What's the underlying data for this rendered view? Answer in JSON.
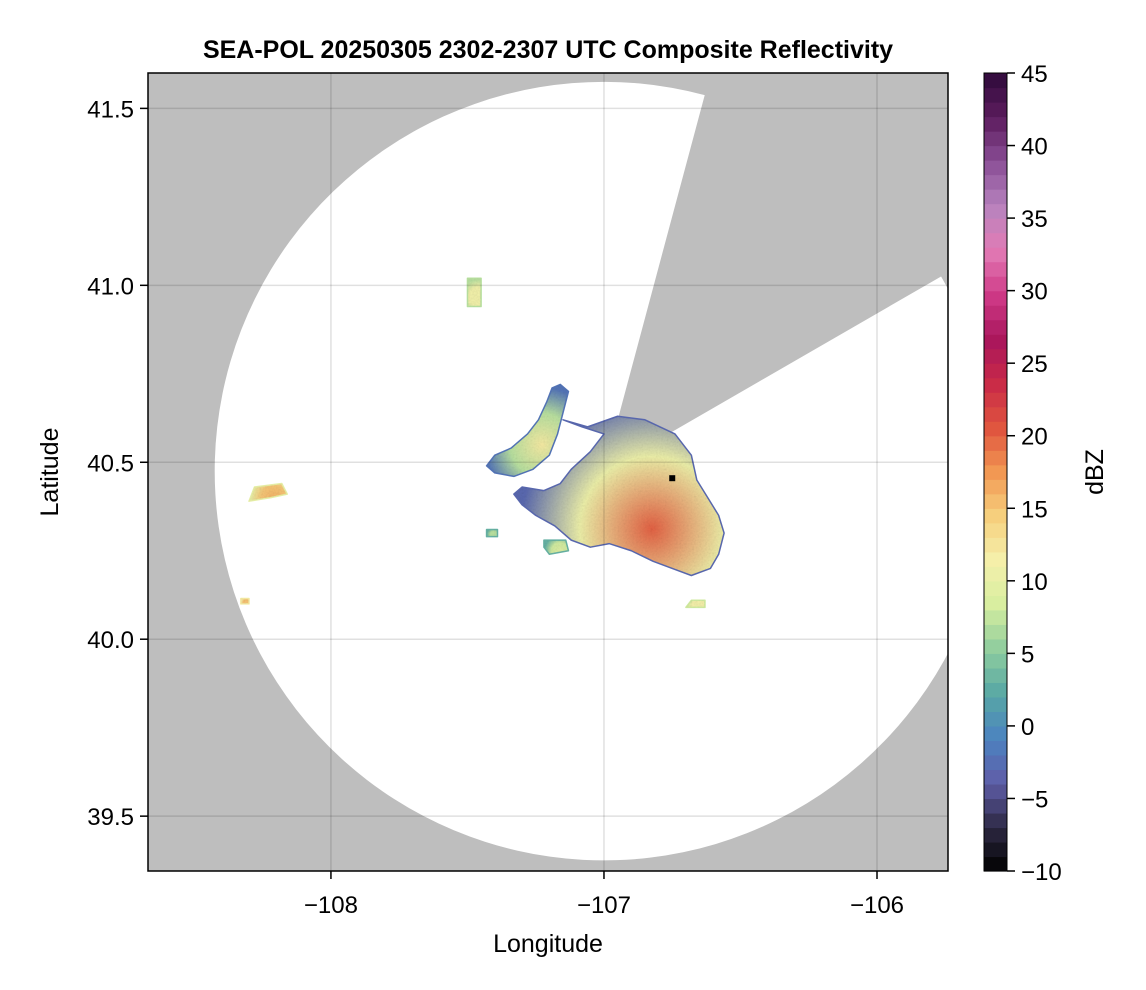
{
  "chart_data": {
    "type": "heatmap",
    "title": "SEA-POL 20250305 2302-2307 UTC Composite Reflectivity",
    "xlabel": "Longitude",
    "ylabel": "Latitude",
    "xlim": [
      -108.67,
      -105.74
    ],
    "ylim": [
      39.345,
      41.6
    ],
    "xticks": [
      -108,
      -107,
      -106
    ],
    "xtick_labels": [
      "−108",
      "−107",
      "−106"
    ],
    "yticks": [
      39.5,
      40.0,
      40.5,
      41.0,
      41.5
    ],
    "ytick_labels": [
      "39.5",
      "40.0",
      "40.5",
      "41.0",
      "41.5"
    ],
    "grid": true,
    "background_color": "#bebebe",
    "coverage_color": "#ffffff",
    "radar": {
      "center_lon": -107.0,
      "center_lat": 40.475,
      "radius_deg_lat": 1.1,
      "blocked_sectors_deg_cw_from_north": [
        [
          15,
          60
        ]
      ]
    },
    "site_marker": {
      "lon": -106.75,
      "lat": 40.455,
      "color": "#000000"
    },
    "echo_regions": [
      {
        "name": "main",
        "peak_dbz": 20,
        "min_dbz": -3,
        "outline": [
          [
            -107.15,
            40.62
          ],
          [
            -107.06,
            40.6
          ],
          [
            -106.95,
            40.63
          ],
          [
            -106.85,
            40.62
          ],
          [
            -106.74,
            40.58
          ],
          [
            -106.68,
            40.52
          ],
          [
            -106.66,
            40.45
          ],
          [
            -106.62,
            40.4
          ],
          [
            -106.58,
            40.35
          ],
          [
            -106.56,
            40.3
          ],
          [
            -106.58,
            40.24
          ],
          [
            -106.61,
            40.2
          ],
          [
            -106.68,
            40.18
          ],
          [
            -106.75,
            40.2
          ],
          [
            -106.82,
            40.22
          ],
          [
            -106.9,
            40.25
          ],
          [
            -106.98,
            40.27
          ],
          [
            -107.05,
            40.26
          ],
          [
            -107.12,
            40.28
          ],
          [
            -107.18,
            40.32
          ],
          [
            -107.25,
            40.35
          ],
          [
            -107.3,
            40.38
          ],
          [
            -107.33,
            40.41
          ],
          [
            -107.3,
            40.43
          ],
          [
            -107.22,
            40.42
          ],
          [
            -107.16,
            40.44
          ],
          [
            -107.12,
            40.48
          ],
          [
            -107.05,
            40.53
          ],
          [
            -107.0,
            40.58
          ],
          [
            -107.08,
            40.6
          ]
        ]
      },
      {
        "name": "northwest-arm",
        "peak_dbz": 12,
        "min_dbz": -2,
        "outline": [
          [
            -107.16,
            40.72
          ],
          [
            -107.13,
            40.7
          ],
          [
            -107.17,
            40.58
          ],
          [
            -107.2,
            40.52
          ],
          [
            -107.26,
            40.48
          ],
          [
            -107.33,
            40.46
          ],
          [
            -107.4,
            40.47
          ],
          [
            -107.43,
            40.49
          ],
          [
            -107.4,
            40.52
          ],
          [
            -107.34,
            40.54
          ],
          [
            -107.28,
            40.58
          ],
          [
            -107.24,
            40.62
          ],
          [
            -107.21,
            40.67
          ],
          [
            -107.19,
            40.71
          ]
        ]
      },
      {
        "name": "west-cell",
        "peak_dbz": 16,
        "min_dbz": 10,
        "outline": [
          [
            -108.28,
            40.43
          ],
          [
            -108.18,
            40.44
          ],
          [
            -108.16,
            40.41
          ],
          [
            -108.22,
            40.4
          ],
          [
            -108.3,
            40.39
          ]
        ]
      },
      {
        "name": "southwest-cell",
        "peak_dbz": 15,
        "min_dbz": 12,
        "outline": [
          [
            -108.33,
            40.115
          ],
          [
            -108.3,
            40.115
          ],
          [
            -108.3,
            40.1
          ],
          [
            -108.33,
            40.1
          ]
        ]
      },
      {
        "name": "south-cell",
        "peak_dbz": 9,
        "min_dbz": 3,
        "outline": [
          [
            -107.22,
            40.28
          ],
          [
            -107.14,
            40.28
          ],
          [
            -107.13,
            40.25
          ],
          [
            -107.2,
            40.24
          ],
          [
            -107.22,
            40.26
          ]
        ]
      },
      {
        "name": "west-small-cell",
        "peak_dbz": 7,
        "min_dbz": 3,
        "outline": [
          [
            -107.43,
            40.31
          ],
          [
            -107.39,
            40.31
          ],
          [
            -107.39,
            40.29
          ],
          [
            -107.43,
            40.29
          ]
        ]
      },
      {
        "name": "southeast-cell",
        "peak_dbz": 11,
        "min_dbz": 8,
        "outline": [
          [
            -106.68,
            40.11
          ],
          [
            -106.63,
            40.11
          ],
          [
            -106.63,
            40.09
          ],
          [
            -106.7,
            40.09
          ]
        ]
      },
      {
        "name": "north-scatter",
        "peak_dbz": 11,
        "min_dbz": 7,
        "outline": [
          [
            -107.5,
            41.02
          ],
          [
            -107.45,
            41.02
          ],
          [
            -107.45,
            40.94
          ],
          [
            -107.5,
            40.94
          ]
        ]
      }
    ],
    "colorbar": {
      "label": "dBZ",
      "min": -10,
      "max": 45,
      "ticks": [
        -10,
        -5,
        0,
        5,
        10,
        15,
        20,
        25,
        30,
        35,
        40,
        45
      ],
      "tick_labels": [
        "−10",
        "−5",
        "0",
        "5",
        "10",
        "15",
        "20",
        "25",
        "30",
        "35",
        "40",
        "45"
      ],
      "bins": 55,
      "colormap": [
        "#000000",
        "#2e2a45",
        "#5f5da8",
        "#4c83c0",
        "#58a8a5",
        "#8fcd9e",
        "#d7ee9f",
        "#f5f0ab",
        "#f6d07e",
        "#f29853",
        "#e0553f",
        "#c92a47",
        "#a9165c",
        "#cf3a87",
        "#e27bb5",
        "#b783be",
        "#8a4e96",
        "#5c1c5e",
        "#2e0a3a"
      ]
    }
  }
}
